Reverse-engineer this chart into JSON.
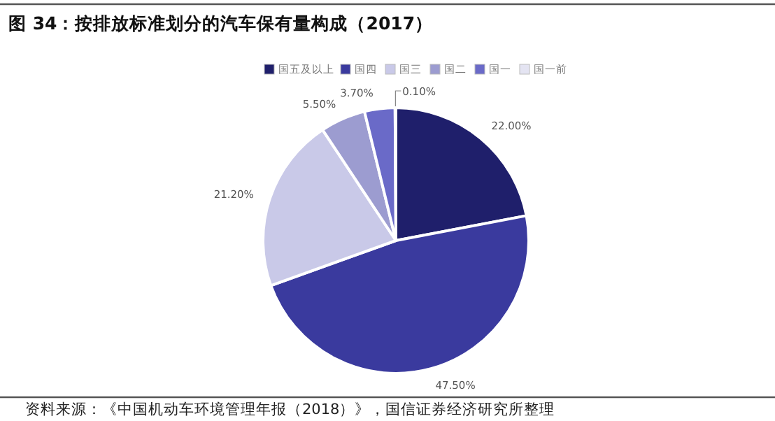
{
  "chart_data": {
    "type": "pie",
    "title": "图 34：按排放标准划分的汽车保有量构成（2017）",
    "categories": [
      "国五及以上",
      "国四",
      "国三",
      "国二",
      "国一",
      "国一前"
    ],
    "values": [
      22.0,
      47.5,
      21.2,
      5.5,
      3.7,
      0.1
    ],
    "value_labels": [
      "22.00%",
      "47.50%",
      "21.20%",
      "5.50%",
      "3.70%",
      "0.10%"
    ],
    "colors": [
      "#1f1f6b",
      "#3a3a9e",
      "#c9c9e8",
      "#9c9cd0",
      "#6a6ac8",
      "#e4e4f2"
    ],
    "legend": "top",
    "annotations": [
      "资料来源：《中国机动车环境管理年报（2018）》，国信证券经济研究所整理"
    ]
  }
}
